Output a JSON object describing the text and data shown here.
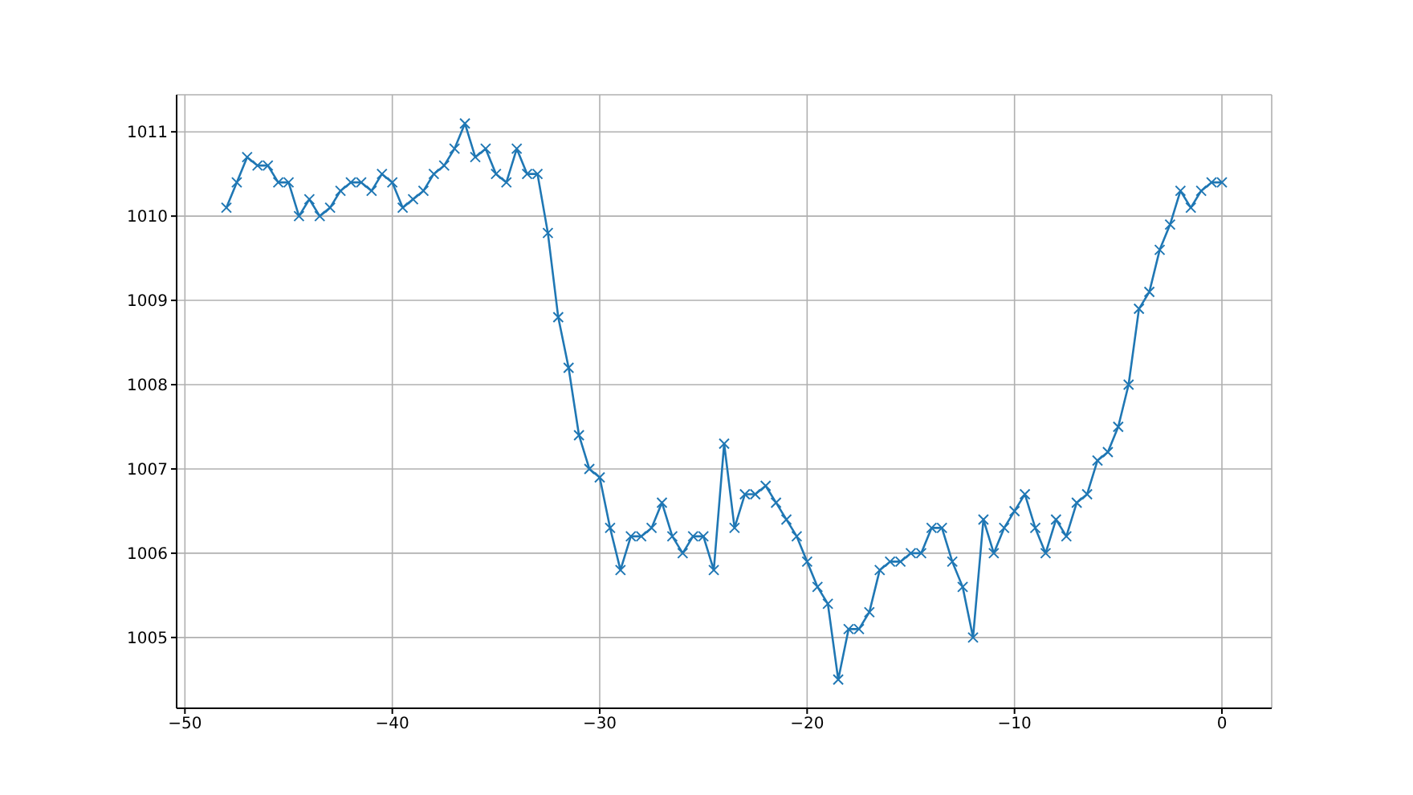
{
  "chart_data": {
    "type": "line",
    "x": [
      -48,
      -47.5,
      -47,
      -46.5,
      -46,
      -45.5,
      -45,
      -44.5,
      -44,
      -43.5,
      -43,
      -42.5,
      -42,
      -41.5,
      -41,
      -40.5,
      -40,
      -39.5,
      -39,
      -38.5,
      -38,
      -37.5,
      -37,
      -36.5,
      -36,
      -35.5,
      -35,
      -34.5,
      -34,
      -33.5,
      -33,
      -32.5,
      -32,
      -31.5,
      -31,
      -30.5,
      -30,
      -29.5,
      -29,
      -28.5,
      -28,
      -27.5,
      -27,
      -26.5,
      -26,
      -25.5,
      -25,
      -24.5,
      -24,
      -23.5,
      -23,
      -22.5,
      -22,
      -21.5,
      -21,
      -20.5,
      -20,
      -19.5,
      -19,
      -18.5,
      -18,
      -17.5,
      -17,
      -16.5,
      -16,
      -15.5,
      -15,
      -14.5,
      -14,
      -13.5,
      -13,
      -12.5,
      -12,
      -11.5,
      -11,
      -10.5,
      -10,
      -9.5,
      -9,
      -8.5,
      -8,
      -7.5,
      -7,
      -6.5,
      -6,
      -5.5,
      -5,
      -4.5,
      -4,
      -3.5,
      -3,
      -2.5,
      -2,
      -1.5,
      -1,
      -0.5,
      0
    ],
    "series": [
      {
        "color": "#1f77b4",
        "values": [
          1010.1,
          1010.4,
          1010.7,
          1010.6,
          1010.6,
          1010.4,
          1010.4,
          1010.0,
          1010.2,
          1010.0,
          1010.1,
          1010.3,
          1010.4,
          1010.4,
          1010.3,
          1010.5,
          1010.4,
          1010.1,
          1010.2,
          1010.3,
          1010.5,
          1010.6,
          1010.8,
          1011.1,
          1010.7,
          1010.8,
          1010.5,
          1010.4,
          1010.8,
          1010.5,
          1010.5,
          1009.8,
          1008.8,
          1008.2,
          1007.4,
          1007.0,
          1006.9,
          1006.3,
          1005.8,
          1006.2,
          1006.2,
          1006.3,
          1006.6,
          1006.2,
          1006.0,
          1006.2,
          1006.2,
          1005.8,
          1007.3,
          1006.3,
          1006.7,
          1006.7,
          1006.8,
          1006.6,
          1006.4,
          1006.2,
          1005.9,
          1005.6,
          1005.4,
          1004.5,
          1005.1,
          1005.1,
          1005.3,
          1005.8,
          1005.9,
          1005.9,
          1006.0,
          1006.0,
          1006.3,
          1006.3,
          1005.9,
          1005.6,
          1005.0,
          1006.4,
          1006.0,
          1006.3,
          1006.5,
          1006.7,
          1006.3,
          1006.0,
          1006.4,
          1006.2,
          1006.6,
          1006.7,
          1007.1,
          1007.2,
          1007.5,
          1008.0,
          1008.9,
          1009.1,
          1009.6,
          1009.9,
          1010.3,
          1010.1,
          1010.3,
          1010.4,
          1010.4
        ]
      }
    ],
    "xlim": [
      -50.4,
      2.4
    ],
    "xticks": [
      -50,
      -40,
      -30,
      -20,
      -10,
      0
    ],
    "ylim": [
      1004.16,
      1011.44
    ],
    "yticks": [
      1005,
      1006,
      1007,
      1008,
      1009,
      1010,
      1011
    ],
    "grid": true,
    "marker": "cross",
    "line_style": "solid",
    "legend": false
  }
}
